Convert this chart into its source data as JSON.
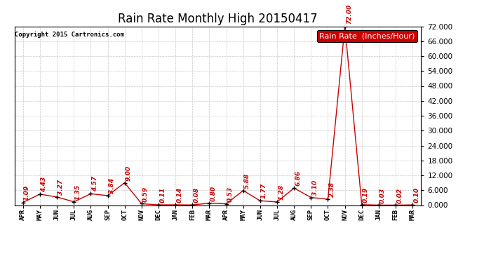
{
  "title": "Rain Rate Monthly High 20150417",
  "copyright": "Copyright 2015 Cartronics.com",
  "legend_label": "Rain Rate  (Inches/Hour)",
  "x_labels": [
    "APR",
    "MAY",
    "JUN",
    "JUL",
    "AUG",
    "SEP",
    "OCT",
    "NOV",
    "DEC",
    "JAN",
    "FEB",
    "MAR",
    "APR",
    "MAY",
    "JUN",
    "JUL",
    "AUG",
    "SEP",
    "OCT",
    "NOV",
    "DEC",
    "JAN",
    "FEB",
    "MAR"
  ],
  "values": [
    1.09,
    4.43,
    3.27,
    1.35,
    4.57,
    3.84,
    9.0,
    0.59,
    0.11,
    0.14,
    0.08,
    0.8,
    0.53,
    5.88,
    1.77,
    1.28,
    6.86,
    3.1,
    2.38,
    72.0,
    0.19,
    0.03,
    0.02,
    0.1
  ],
  "raw_labels": [
    "1.09",
    "4.43",
    "3.27",
    "1.35",
    "4.57",
    "3.84",
    "9.00",
    "0.59",
    "0.11",
    "0.14",
    "0.08",
    "0.80",
    "0.53",
    "5.88",
    "1.77",
    "1.28",
    "6.86",
    "3.10",
    "2.38",
    "72.00",
    "0.19",
    "0.03",
    "0.02",
    "0.10"
  ],
  "ylim": [
    0,
    72
  ],
  "yticks": [
    0.0,
    6.0,
    12.0,
    18.0,
    24.0,
    30.0,
    36.0,
    42.0,
    48.0,
    54.0,
    60.0,
    66.0,
    72.0
  ],
  "line_color": "#cc0000",
  "marker_color": "#000000",
  "bg_color": "#ffffff",
  "grid_color": "#bbbbbb",
  "title_fontsize": 12,
  "xlabel_fontsize": 6.5,
  "ylabel_fontsize": 7.5,
  "annot_fontsize": 6.5,
  "legend_bg": "#cc0000",
  "legend_fg": "#ffffff",
  "legend_fontsize": 8
}
